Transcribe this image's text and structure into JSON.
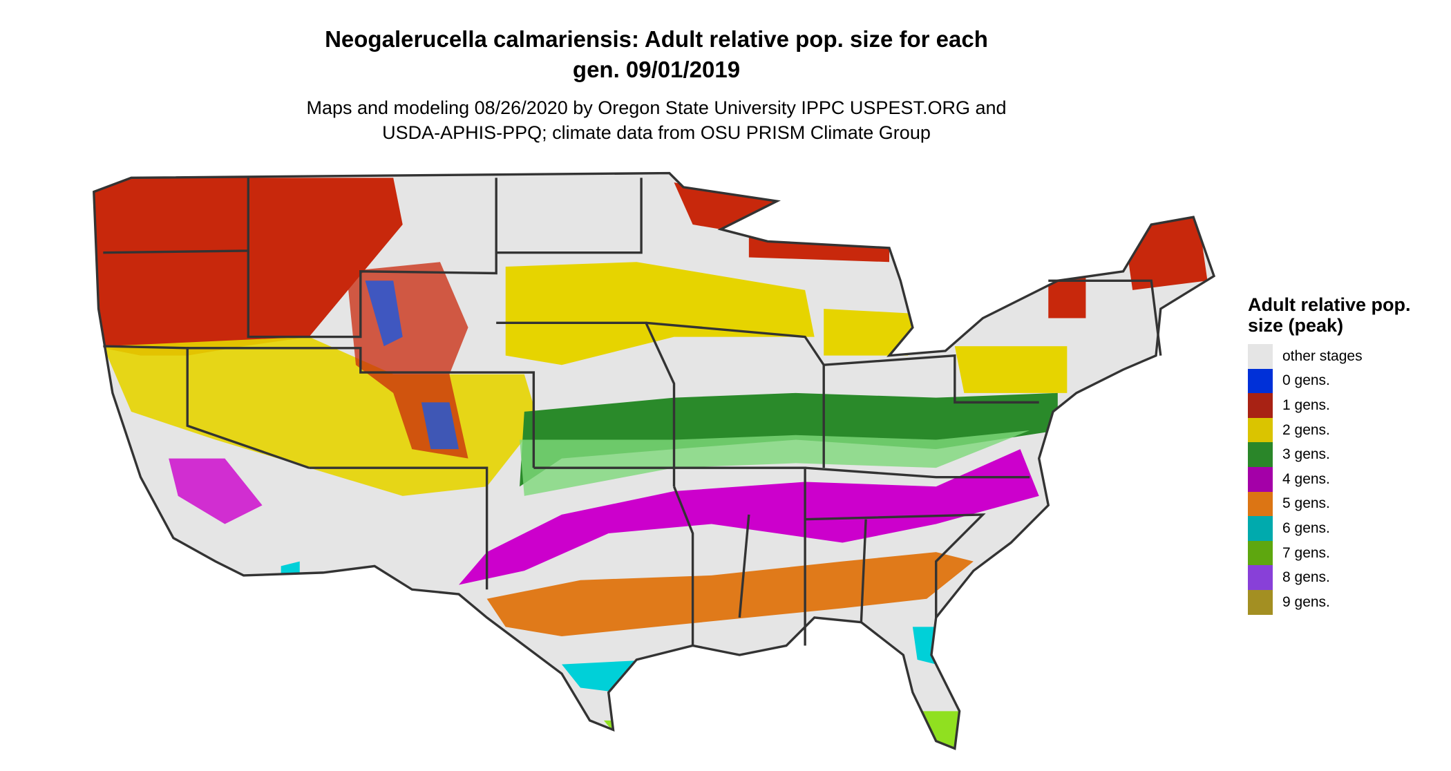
{
  "title": {
    "line1": "Neogalerucella calmariensis: Adult relative pop. size for each",
    "line2": "gen. 09/01/2019"
  },
  "subtitle": {
    "line1": "Maps and modeling 08/26/2020 by Oregon State University IPPC USPEST.ORG and",
    "line2": "USDA-APHIS-PPQ; climate data from OSU PRISM Climate Group"
  },
  "legend": {
    "title": "Adult relative pop. size (peak)",
    "placement": "right",
    "items": [
      {
        "label": "other stages",
        "color": "#e5e5e5"
      },
      {
        "label": "0 gens.",
        "color": "#0030d8"
      },
      {
        "label": "1 gens.",
        "color": "#a82214"
      },
      {
        "label": "2 gens.",
        "color": "#dac400"
      },
      {
        "label": "3 gens.",
        "color": "#2a8629"
      },
      {
        "label": "4 gens.",
        "color": "#a400a8"
      },
      {
        "label": "5 gens.",
        "color": "#dc7514"
      },
      {
        "label": "6 gens.",
        "color": "#00aaad"
      },
      {
        "label": "7 gens.",
        "color": "#5ea70f"
      },
      {
        "label": "8 gens.",
        "color": "#8840d8"
      },
      {
        "label": "9 gens.",
        "color": "#a38f22"
      }
    ]
  },
  "map": {
    "region": "contiguous United States",
    "background_color": "#e5e5e5",
    "border_color": "#333333"
  }
}
